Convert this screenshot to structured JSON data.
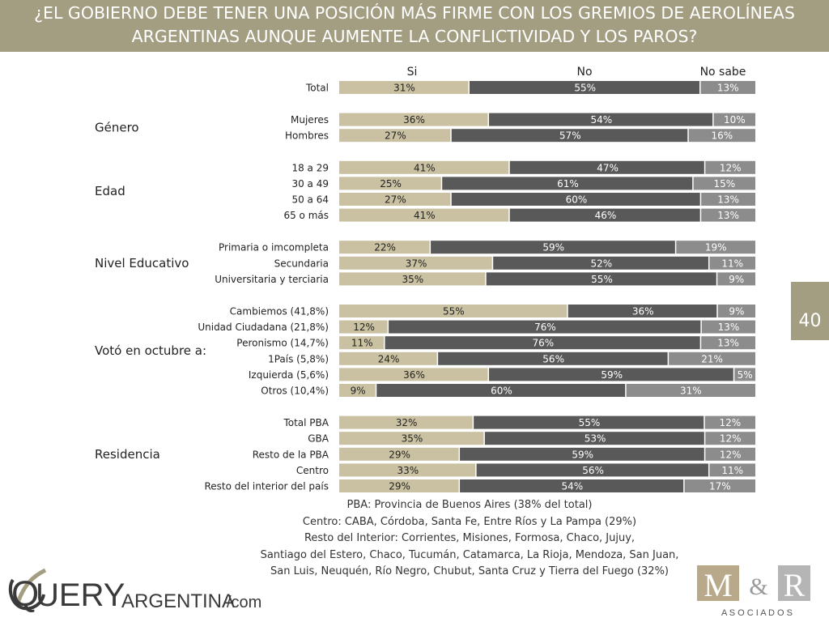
{
  "header": {
    "title_line1": "¿EL GOBIERNO DEBE TENER UNA POSICIÓN MÁS FIRME CON LOS GREMIOS DE AEROLÍNEAS",
    "title_line2": "ARGENTINAS AUNQUE AUMENTE LA CONFLICTIVIDAD Y LOS PAROS?"
  },
  "page_number": "40",
  "colors": {
    "si": "#c9c1a1",
    "no": "#595959",
    "no_sabe": "#8c8c8c",
    "accent": "#a39d82"
  },
  "chart_data": {
    "type": "bar",
    "orientation": "horizontal",
    "stacked": true,
    "normalized": true,
    "series_names": [
      "Si",
      "No",
      "No sabe"
    ],
    "groups": [
      {
        "name": "",
        "rows": [
          {
            "label": "Total",
            "values": [
              31,
              55,
              13
            ]
          }
        ]
      },
      {
        "name": "Género",
        "rows": [
          {
            "label": "Mujeres",
            "values": [
              36,
              54,
              10
            ]
          },
          {
            "label": "Hombres",
            "values": [
              27,
              57,
              16
            ]
          }
        ]
      },
      {
        "name": "Edad",
        "rows": [
          {
            "label": "18 a 29",
            "values": [
              41,
              47,
              12
            ]
          },
          {
            "label": "30 a 49",
            "values": [
              25,
              61,
              15
            ]
          },
          {
            "label": "50 a 64",
            "values": [
              27,
              60,
              13
            ]
          },
          {
            "label": "65 o más",
            "values": [
              41,
              46,
              13
            ]
          }
        ]
      },
      {
        "name": "Nivel Educativo",
        "rows": [
          {
            "label": "Primaria o imcompleta",
            "values": [
              22,
              59,
              19
            ]
          },
          {
            "label": "Secundaria",
            "values": [
              37,
              52,
              11
            ]
          },
          {
            "label": "Universitaria y terciaria",
            "values": [
              35,
              55,
              9
            ]
          }
        ]
      },
      {
        "name": "Votó en octubre a:",
        "rows": [
          {
            "label": "Cambiemos (41,8%)",
            "values": [
              55,
              36,
              9
            ]
          },
          {
            "label": "Unidad Ciudadana (21,8%)",
            "values": [
              12,
              76,
              13
            ]
          },
          {
            "label": "Peronismo (14,7%)",
            "values": [
              11,
              76,
              13
            ]
          },
          {
            "label": "1País (5,8%)",
            "values": [
              24,
              56,
              21
            ]
          },
          {
            "label": "Izquierda (5,6%)",
            "values": [
              36,
              59,
              5
            ]
          },
          {
            "label": "Otros (10,4%)",
            "values": [
              9,
              60,
              31
            ]
          }
        ]
      },
      {
        "name": "Residencia",
        "rows": [
          {
            "label": "Total PBA",
            "values": [
              32,
              55,
              12
            ]
          },
          {
            "label": "GBA",
            "values": [
              35,
              53,
              12
            ]
          },
          {
            "label": "Resto de la PBA",
            "values": [
              29,
              59,
              12
            ]
          },
          {
            "label": "Centro",
            "values": [
              33,
              56,
              11
            ]
          },
          {
            "label": "Resto del interior del país",
            "values": [
              29,
              54,
              17
            ]
          }
        ]
      }
    ]
  },
  "footnotes": [
    "PBA: Provincia de Buenos Aires (38% del total)",
    "Centro: CABA, Córdoba, Santa Fe, Entre Ríos y La Pampa (29%)",
    "Resto del Interior: Corrientes, Misiones, Formosa, Chaco, Jujuy,",
    "Santiago del Estero, Chaco, Tucumán, Catamarca, La Rioja, Mendoza, San Juan,",
    "San Luis, Neuquén, Río Negro, Chubut, Santa Cruz y Tierra del Fuego (32%)"
  ],
  "logos": {
    "query": {
      "q": "Q",
      "uery": "UERY",
      "argentina": "ARGENTINA",
      "com": "/com"
    },
    "mr": {
      "m": "M",
      "amp": "&",
      "r": "R",
      "sub": "A S O C I A D O S"
    }
  }
}
